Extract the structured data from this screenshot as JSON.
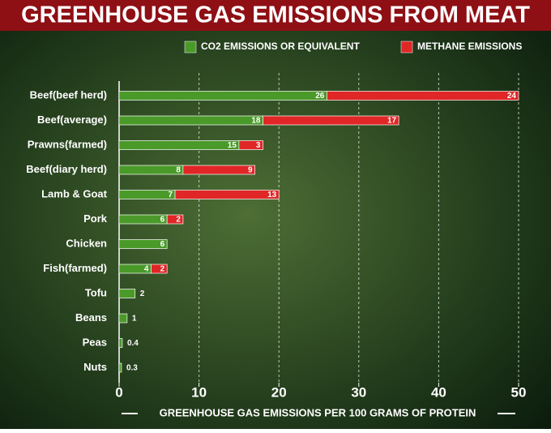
{
  "chart_data": {
    "type": "bar",
    "orientation": "horizontal",
    "stacked": true,
    "title": "GREENHOUSE GAS EMISSIONS FROM MEAT",
    "x_label": "GREENHOUSE GAS EMISSIONS PER 100 GRAMS OF PROTEIN",
    "categories": [
      "Beef(beef herd)",
      "Beef(average)",
      "Prawns(farmed)",
      "Beef(diary herd)",
      "Lamb & Goat",
      "Pork",
      "Chicken",
      "Fish(farmed)",
      "Tofu",
      "Beans",
      "Peas",
      "Nuts"
    ],
    "series": [
      {
        "name": "CO2 EMISSIONS OR EQUIVALENT",
        "color": "#4a9a2a",
        "values": [
          26,
          18,
          15,
          8,
          7,
          6,
          6,
          4,
          2,
          1,
          0.4,
          0.3
        ]
      },
      {
        "name": "METHANE EMISSIONS",
        "color": "#e02626",
        "values": [
          24,
          17,
          3,
          9,
          13,
          2,
          null,
          2,
          null,
          null,
          null,
          null
        ]
      }
    ],
    "xlim": [
      0,
      50
    ],
    "xticks": [
      0,
      10,
      20,
      30,
      40,
      50
    ],
    "grid": true
  }
}
